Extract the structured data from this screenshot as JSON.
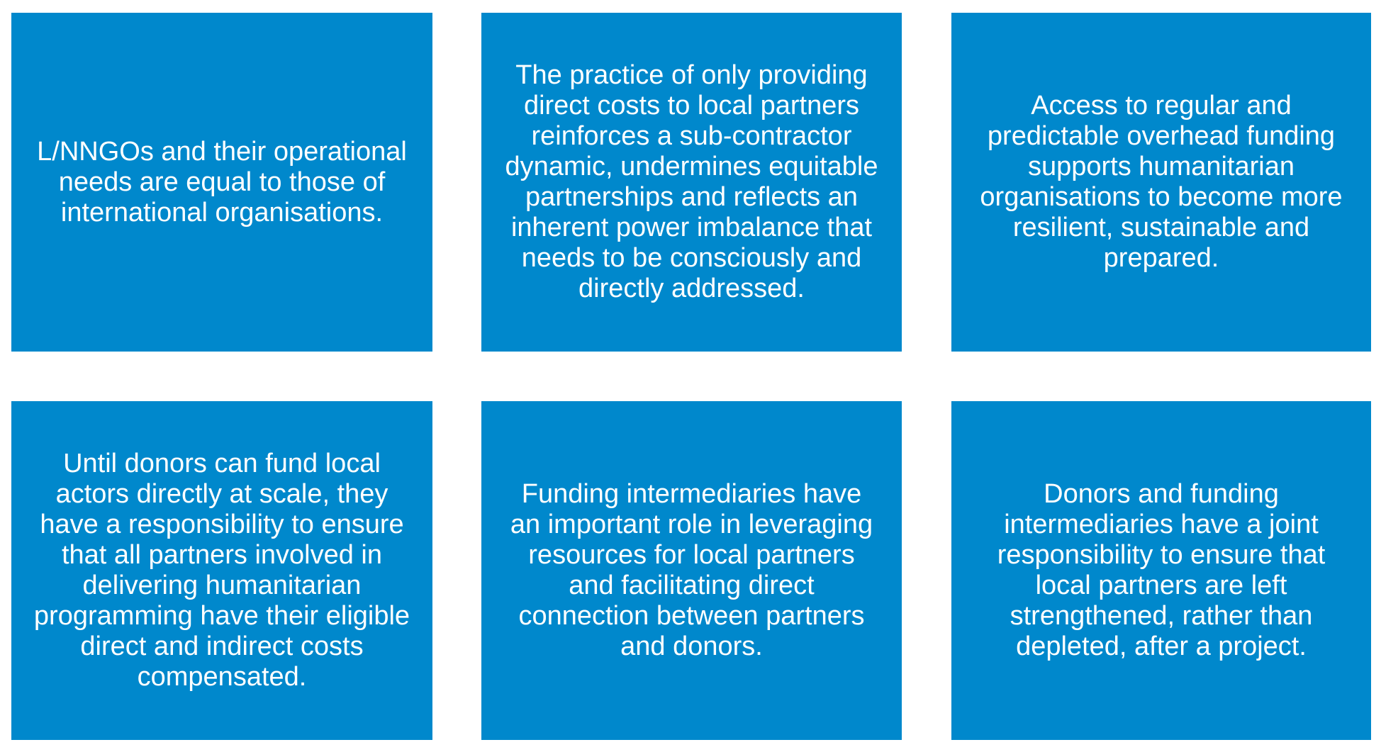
{
  "boxes": [
    {
      "lines": [
        "L/NNGOs and their operational",
        "needs are equal to those of",
        "international organisations."
      ]
    },
    {
      "lines": [
        "The practice of only providing",
        "direct costs to local partners",
        "reinforces a sub-contractor",
        "dynamic, undermines equitable",
        "partnerships and reflects an",
        "inherent power imbalance that",
        "needs to be consciously and",
        "directly addressed."
      ]
    },
    {
      "lines": [
        "Access to regular and",
        "predictable overhead funding",
        "supports humanitarian",
        "organisations to become more",
        "resilient, sustainable and",
        "prepared."
      ]
    },
    {
      "lines": [
        "Until donors can fund local",
        "actors directly at scale, they",
        "have a responsibility to ensure",
        "that all partners involved in",
        "delivering humanitarian",
        "programming have their eligible",
        "direct and indirect costs",
        "compensated."
      ]
    },
    {
      "lines": [
        "Funding intermediaries have",
        "an important role in leveraging",
        "resources for local partners",
        "and facilitating direct",
        "connection between partners",
        "and donors."
      ]
    },
    {
      "lines": [
        "Donors and funding",
        "intermediaries have a joint",
        "responsibility to ensure that",
        "local partners are left",
        "strengthened, rather than",
        "depleted, after a project."
      ]
    }
  ],
  "colors": {
    "box_fill": "#0088cc",
    "text": "#ffffff",
    "background": "#ffffff"
  }
}
